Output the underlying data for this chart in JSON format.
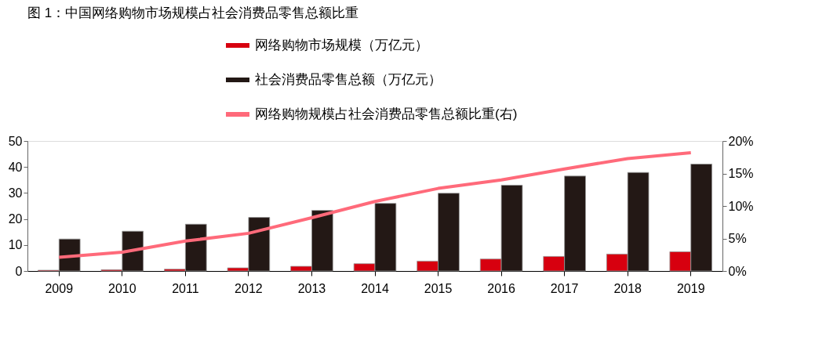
{
  "chart_data": {
    "type": "bar",
    "title": "图 1：中国网络购物市场规模占社会消费品零售总额比重",
    "categories": [
      "2009",
      "2010",
      "2011",
      "2012",
      "2013",
      "2014",
      "2015",
      "2016",
      "2017",
      "2018",
      "2019"
    ],
    "series": [
      {
        "name": "网络购物市场规模（万亿元）",
        "color": "#d7000f",
        "values": [
          0.3,
          0.5,
          0.7,
          1.2,
          1.8,
          2.8,
          3.8,
          4.6,
          5.6,
          6.5,
          7.4
        ]
      },
      {
        "name": "社会消费品零售总额（万亿元）",
        "color": "#231815",
        "values": [
          12.3,
          15.3,
          18.0,
          20.6,
          23.3,
          26.0,
          29.9,
          33.0,
          36.5,
          37.9,
          41.1
        ]
      },
      {
        "name": "网络购物规模占社会消费品零售总额比重(右)",
        "type": "line",
        "axis": "y2",
        "color": "#ff6a7a",
        "values": [
          2.1,
          2.9,
          4.6,
          5.8,
          8.2,
          10.7,
          12.7,
          14.0,
          15.7,
          17.3,
          18.2
        ]
      }
    ],
    "ylim": [
      0,
      50
    ],
    "yticks": [
      0,
      10,
      20,
      30,
      40,
      50
    ],
    "y2lim": [
      0,
      20
    ],
    "y2ticks": [
      {
        "value": 0,
        "label": "0%"
      },
      {
        "value": 5,
        "label": "5%"
      },
      {
        "value": 10,
        "label": "10%"
      },
      {
        "value": 15,
        "label": "15%"
      },
      {
        "value": 20,
        "label": "20%"
      }
    ],
    "legend": "top",
    "grid": false
  }
}
